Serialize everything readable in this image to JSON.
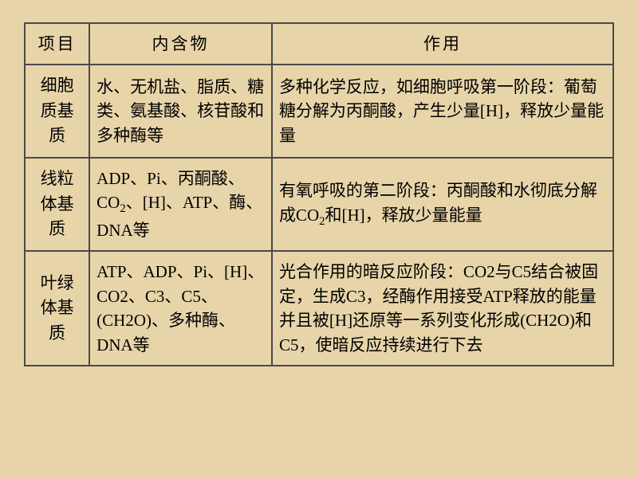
{
  "table": {
    "background_color": "#e8d4a9",
    "border_color": "#4a4a4a",
    "text_color": "#000000",
    "font_size": 21,
    "headers": {
      "col1": "项目",
      "col2": "内含物",
      "col3": "作用"
    },
    "rows": [
      {
        "item": "细胞质基质",
        "contents": "水、无机盐、脂质、糖类、氨基酸、核苷酸和多种酶等",
        "function": "多种化学反应，如细胞呼吸第一阶段：葡萄糖分解为丙酮酸，产生少量[H]，释放少量能量"
      },
      {
        "item": "线粒体基质",
        "contents": "ADP、Pi、丙酮酸、CO₂、[H]、ATP、酶、DNA等",
        "function": "有氧呼吸的第二阶段：丙酮酸和水彻底分解成CO₂和[H]，释放少量能量"
      },
      {
        "item": "叶绿体基质",
        "contents": "ATP、ADP、Pi、[H]、CO2、C3、C5、(CH2O)、多种酶、DNA等",
        "function": "光合作用的暗反应阶段：CO2与C5结合被固定，生成C3，经酶作用接受ATP释放的能量并且被[H]还原等一系列变化形成(CH2O)和C5，使暗反应持续进行下去"
      }
    ]
  }
}
